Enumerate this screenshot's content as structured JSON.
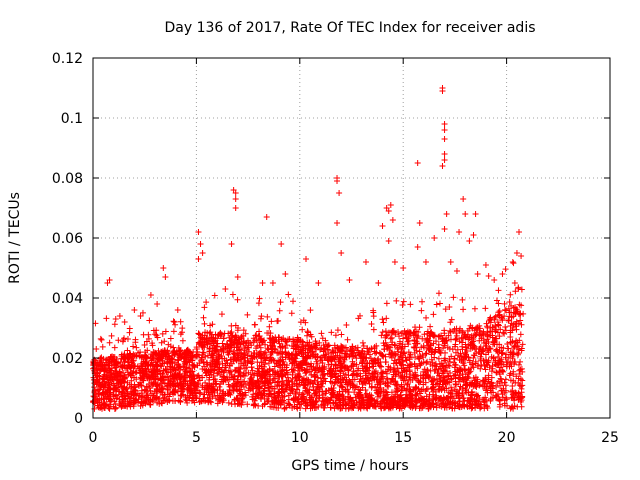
{
  "chart_data": {
    "type": "scatter",
    "title": "Day 136 of 2017, Rate Of TEC Index for receiver adis",
    "xlabel": "GPS time / hours",
    "ylabel": "ROTI / TECUs",
    "xlim": [
      0,
      25
    ],
    "ylim": [
      0,
      0.12
    ],
    "x_ticks": [
      0,
      5,
      10,
      15,
      20,
      25
    ],
    "x_tick_labels": [
      "0",
      "5",
      "10",
      "15",
      "20",
      "25"
    ],
    "y_ticks": [
      0,
      0.02,
      0.04,
      0.06,
      0.08,
      0.1,
      0.12
    ],
    "y_tick_labels": [
      "0",
      "0.02",
      "0.04",
      "0.06",
      "0.08",
      "0.1",
      "0.12"
    ],
    "grid": true,
    "legend": "none",
    "marker": "plus",
    "color": "#ff0000",
    "series": [
      {
        "points": [
          [
            0.7,
            0.045
          ],
          [
            0.8,
            0.046
          ],
          [
            1.1,
            0.033
          ],
          [
            1.3,
            0.034
          ],
          [
            2.0,
            0.036
          ],
          [
            2.3,
            0.034
          ],
          [
            2.8,
            0.041
          ],
          [
            3.1,
            0.038
          ],
          [
            3.4,
            0.05
          ],
          [
            3.5,
            0.047
          ],
          [
            4.1,
            0.036
          ],
          [
            5.1,
            0.062
          ],
          [
            5.2,
            0.058
          ],
          [
            5.3,
            0.055
          ],
          [
            5.1,
            0.053
          ],
          [
            6.4,
            0.043
          ],
          [
            6.7,
            0.058
          ],
          [
            6.8,
            0.076
          ],
          [
            6.9,
            0.075
          ],
          [
            6.9,
            0.073
          ],
          [
            6.9,
            0.07
          ],
          [
            7.0,
            0.047
          ],
          [
            8.2,
            0.045
          ],
          [
            8.4,
            0.067
          ],
          [
            8.7,
            0.045
          ],
          [
            9.1,
            0.058
          ],
          [
            9.3,
            0.048
          ],
          [
            10.3,
            0.053
          ],
          [
            10.9,
            0.045
          ],
          [
            11.8,
            0.08
          ],
          [
            11.8,
            0.079
          ],
          [
            11.9,
            0.075
          ],
          [
            11.8,
            0.065
          ],
          [
            12.0,
            0.055
          ],
          [
            12.4,
            0.046
          ],
          [
            13.2,
            0.052
          ],
          [
            13.8,
            0.045
          ],
          [
            14.0,
            0.064
          ],
          [
            14.2,
            0.07
          ],
          [
            14.3,
            0.069
          ],
          [
            14.4,
            0.071
          ],
          [
            14.5,
            0.066
          ],
          [
            14.3,
            0.059
          ],
          [
            14.6,
            0.052
          ],
          [
            15.0,
            0.05
          ],
          [
            15.7,
            0.085
          ],
          [
            15.8,
            0.065
          ],
          [
            15.7,
            0.057
          ],
          [
            16.1,
            0.052
          ],
          [
            16.5,
            0.06
          ],
          [
            16.9,
            0.11
          ],
          [
            16.9,
            0.109
          ],
          [
            17.0,
            0.098
          ],
          [
            17.0,
            0.096
          ],
          [
            17.0,
            0.093
          ],
          [
            17.0,
            0.088
          ],
          [
            17.0,
            0.086
          ],
          [
            16.9,
            0.084
          ],
          [
            17.1,
            0.068
          ],
          [
            17.0,
            0.063
          ],
          [
            17.3,
            0.052
          ],
          [
            17.6,
            0.049
          ],
          [
            17.9,
            0.073
          ],
          [
            18.0,
            0.068
          ],
          [
            17.7,
            0.062
          ],
          [
            18.2,
            0.059
          ],
          [
            18.5,
            0.068
          ],
          [
            18.4,
            0.061
          ],
          [
            18.6,
            0.048
          ],
          [
            19.0,
            0.051
          ],
          [
            19.4,
            0.046
          ],
          [
            19.8,
            0.048
          ],
          [
            20.3,
            0.052
          ],
          [
            20.5,
            0.055
          ],
          [
            20.6,
            0.062
          ],
          [
            20.7,
            0.054
          ],
          [
            20.4,
            0.045
          ]
        ]
      }
    ]
  }
}
